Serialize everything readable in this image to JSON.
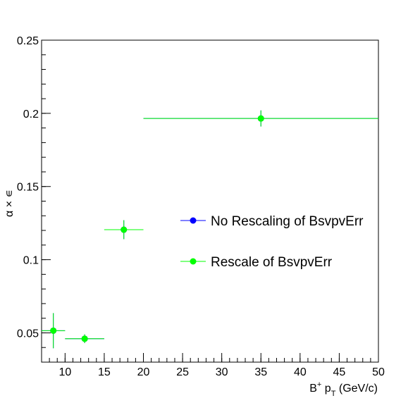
{
  "chart_data": {
    "type": "scatter",
    "title": "",
    "xlabel": {
      "base": "B",
      "sup": "+",
      "mid": " p",
      "sub": "T",
      "tail": " (GeV/c)"
    },
    "ylabel": "α × ∊",
    "xlim": [
      7,
      50
    ],
    "ylim": [
      0.03,
      0.25
    ],
    "x_ticks": [
      10,
      15,
      20,
      25,
      30,
      35,
      40,
      45,
      50
    ],
    "x_tick_labels": [
      "10",
      "15",
      "20",
      "25",
      "30",
      "35",
      "40",
      "45",
      "50"
    ],
    "y_ticks": [
      0.05,
      0.1,
      0.15,
      0.2,
      0.25
    ],
    "y_tick_labels": [
      "0.05",
      "0.1",
      "0.15",
      "0.2",
      "0.25"
    ],
    "grid": false,
    "legend_position": "center-right",
    "series": [
      {
        "name": "No Rescaling of BsvpvErr",
        "color": "#0000ff",
        "points": [
          {
            "x": 8.5,
            "y": 0.0515,
            "xlow": 7,
            "xhigh": 10,
            "yerr": 0.012
          },
          {
            "x": 12.5,
            "y": 0.046,
            "xlow": 10,
            "xhigh": 15,
            "yerr": 0.003
          },
          {
            "x": 17.5,
            "y": 0.1205,
            "xlow": 15,
            "xhigh": 20,
            "yerr": 0.0065
          },
          {
            "x": 35,
            "y": 0.1965,
            "xlow": 20,
            "xhigh": 50,
            "yerr": 0.0055
          }
        ]
      },
      {
        "name": "Rescale of BsvpvErr",
        "color": "#00ff00",
        "points": [
          {
            "x": 8.5,
            "y": 0.0515,
            "xlow": 7,
            "xhigh": 10,
            "yerr": 0.012
          },
          {
            "x": 12.5,
            "y": 0.046,
            "xlow": 10,
            "xhigh": 15,
            "yerr": 0.003
          },
          {
            "x": 17.5,
            "y": 0.1205,
            "xlow": 15,
            "xhigh": 20,
            "yerr": 0.0065
          },
          {
            "x": 35,
            "y": 0.1965,
            "xlow": 20,
            "xhigh": 50,
            "yerr": 0.0055
          }
        ]
      }
    ]
  }
}
